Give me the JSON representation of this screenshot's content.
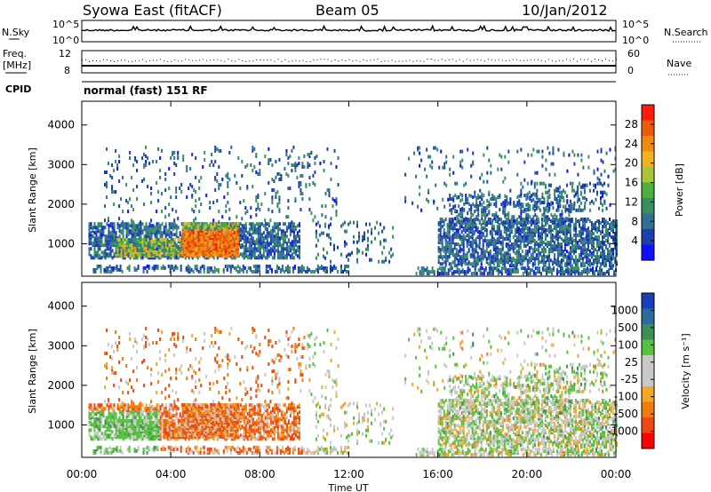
{
  "header": {
    "station": "Syowa East (fitACF)",
    "beam": "Beam 05",
    "date": "10/Jan/2012"
  },
  "strips": {
    "nsky_label": "N.Sky",
    "nsky_ticks": [
      "10^5",
      "10^0"
    ],
    "nsearch_label": "N.Search",
    "nsearch_ticks": [
      "10^5",
      "10^0"
    ],
    "freq_label_1": "Freq.",
    "freq_label_2": "[MHz]",
    "freq_ticks": [
      "12",
      "8"
    ],
    "nave_label": "Nave",
    "nave_ticks": [
      "60",
      "0"
    ],
    "cpid_label": "CPID",
    "cpid_value": "normal (fast) 151 RF"
  },
  "chart_data": [
    {
      "type": "heatmap",
      "title": "",
      "ylabel": "Slant Range [km]",
      "xlabel": "",
      "xlim": [
        0,
        24
      ],
      "ylim": [
        180,
        4600
      ],
      "yticks": [
        "1000",
        "2000",
        "3000",
        "4000"
      ],
      "colorbar": {
        "label": "Power [dB]",
        "ticks": [
          "4",
          "8",
          "12",
          "16",
          "20",
          "24",
          "28"
        ],
        "colors": [
          "#1010ff",
          "#1c3fb0",
          "#2f6f90",
          "#3a8f60",
          "#4bb040",
          "#a9c63a",
          "#f2b21e",
          "#f08a12",
          "#ee5a0c",
          "#ff1a0c"
        ]
      }
    },
    {
      "type": "heatmap",
      "title": "",
      "ylabel": "Slant Range [km]",
      "xlabel": "Time UT",
      "xlim": [
        0,
        24
      ],
      "ylim": [
        180,
        4600
      ],
      "yticks": [
        "1000",
        "2000",
        "3000",
        "4000"
      ],
      "xticks": [
        "00:00",
        "04:00",
        "08:00",
        "12:00",
        "16:00",
        "20:00",
        "00:00"
      ],
      "colorbar": {
        "label": "Velocity [m s⁻¹]",
        "ticks": [
          "1000",
          "500",
          "100",
          "25",
          "-25",
          "-100",
          "-500",
          "-1000"
        ],
        "colors": [
          "#1a3fb8",
          "#2b6c9e",
          "#3d8f56",
          "#57c23c",
          "#c8c8c8",
          "#c8c8c8",
          "#f5a623",
          "#f07c10",
          "#ee4a10",
          "#ff0000"
        ]
      }
    }
  ]
}
